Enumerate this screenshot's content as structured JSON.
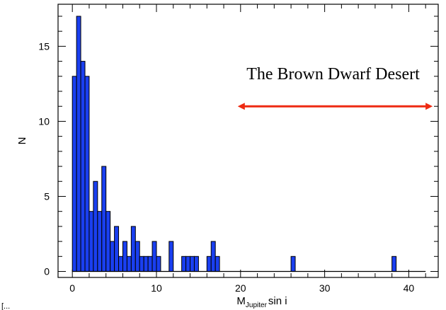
{
  "chart_data": {
    "type": "bar",
    "title": "",
    "xlabel": "M_Jupiter sin i",
    "xlabel_main": "M",
    "xlabel_sub": "Jupiter",
    "xlabel_rest": "sin  i",
    "ylabel": "N",
    "xlim": [
      -1.7,
      43.5
    ],
    "ylim": [
      -0.4,
      17.8
    ],
    "xticks": [
      0,
      10,
      20,
      30,
      40
    ],
    "yticks": [
      0,
      5,
      10,
      15
    ],
    "bin_width": 0.5,
    "bar_color": "#1a3ff0",
    "bins": [
      {
        "x": 0.0,
        "y": 13
      },
      {
        "x": 0.5,
        "y": 17
      },
      {
        "x": 1.0,
        "y": 14
      },
      {
        "x": 1.5,
        "y": 13
      },
      {
        "x": 2.0,
        "y": 4
      },
      {
        "x": 2.5,
        "y": 6
      },
      {
        "x": 3.0,
        "y": 4
      },
      {
        "x": 3.5,
        "y": 7
      },
      {
        "x": 4.0,
        "y": 4
      },
      {
        "x": 4.5,
        "y": 2
      },
      {
        "x": 5.0,
        "y": 3
      },
      {
        "x": 5.5,
        "y": 1
      },
      {
        "x": 6.0,
        "y": 2
      },
      {
        "x": 6.5,
        "y": 1
      },
      {
        "x": 7.0,
        "y": 3
      },
      {
        "x": 7.5,
        "y": 2
      },
      {
        "x": 8.0,
        "y": 1
      },
      {
        "x": 8.5,
        "y": 1
      },
      {
        "x": 9.0,
        "y": 1
      },
      {
        "x": 9.5,
        "y": 2
      },
      {
        "x": 10.0,
        "y": 1
      },
      {
        "x": 10.5,
        "y": 0
      },
      {
        "x": 11.0,
        "y": 0
      },
      {
        "x": 11.5,
        "y": 2
      },
      {
        "x": 12.0,
        "y": 0
      },
      {
        "x": 12.5,
        "y": 0
      },
      {
        "x": 13.0,
        "y": 1
      },
      {
        "x": 13.5,
        "y": 1
      },
      {
        "x": 14.0,
        "y": 1
      },
      {
        "x": 14.5,
        "y": 1
      },
      {
        "x": 15.0,
        "y": 0
      },
      {
        "x": 15.5,
        "y": 0
      },
      {
        "x": 16.0,
        "y": 1
      },
      {
        "x": 16.5,
        "y": 2
      },
      {
        "x": 17.0,
        "y": 1
      },
      {
        "x": 26.0,
        "y": 1
      },
      {
        "x": 38.0,
        "y": 1
      }
    ],
    "annotation": {
      "text": "The Brown Dwarf Desert",
      "arrow_from": 20,
      "arrow_to": 42.5,
      "arrow_y": 11.0,
      "text_x": 31,
      "text_y": 12.8,
      "arrow_color": "#ee2a12"
    }
  },
  "corner_label": "[..."
}
